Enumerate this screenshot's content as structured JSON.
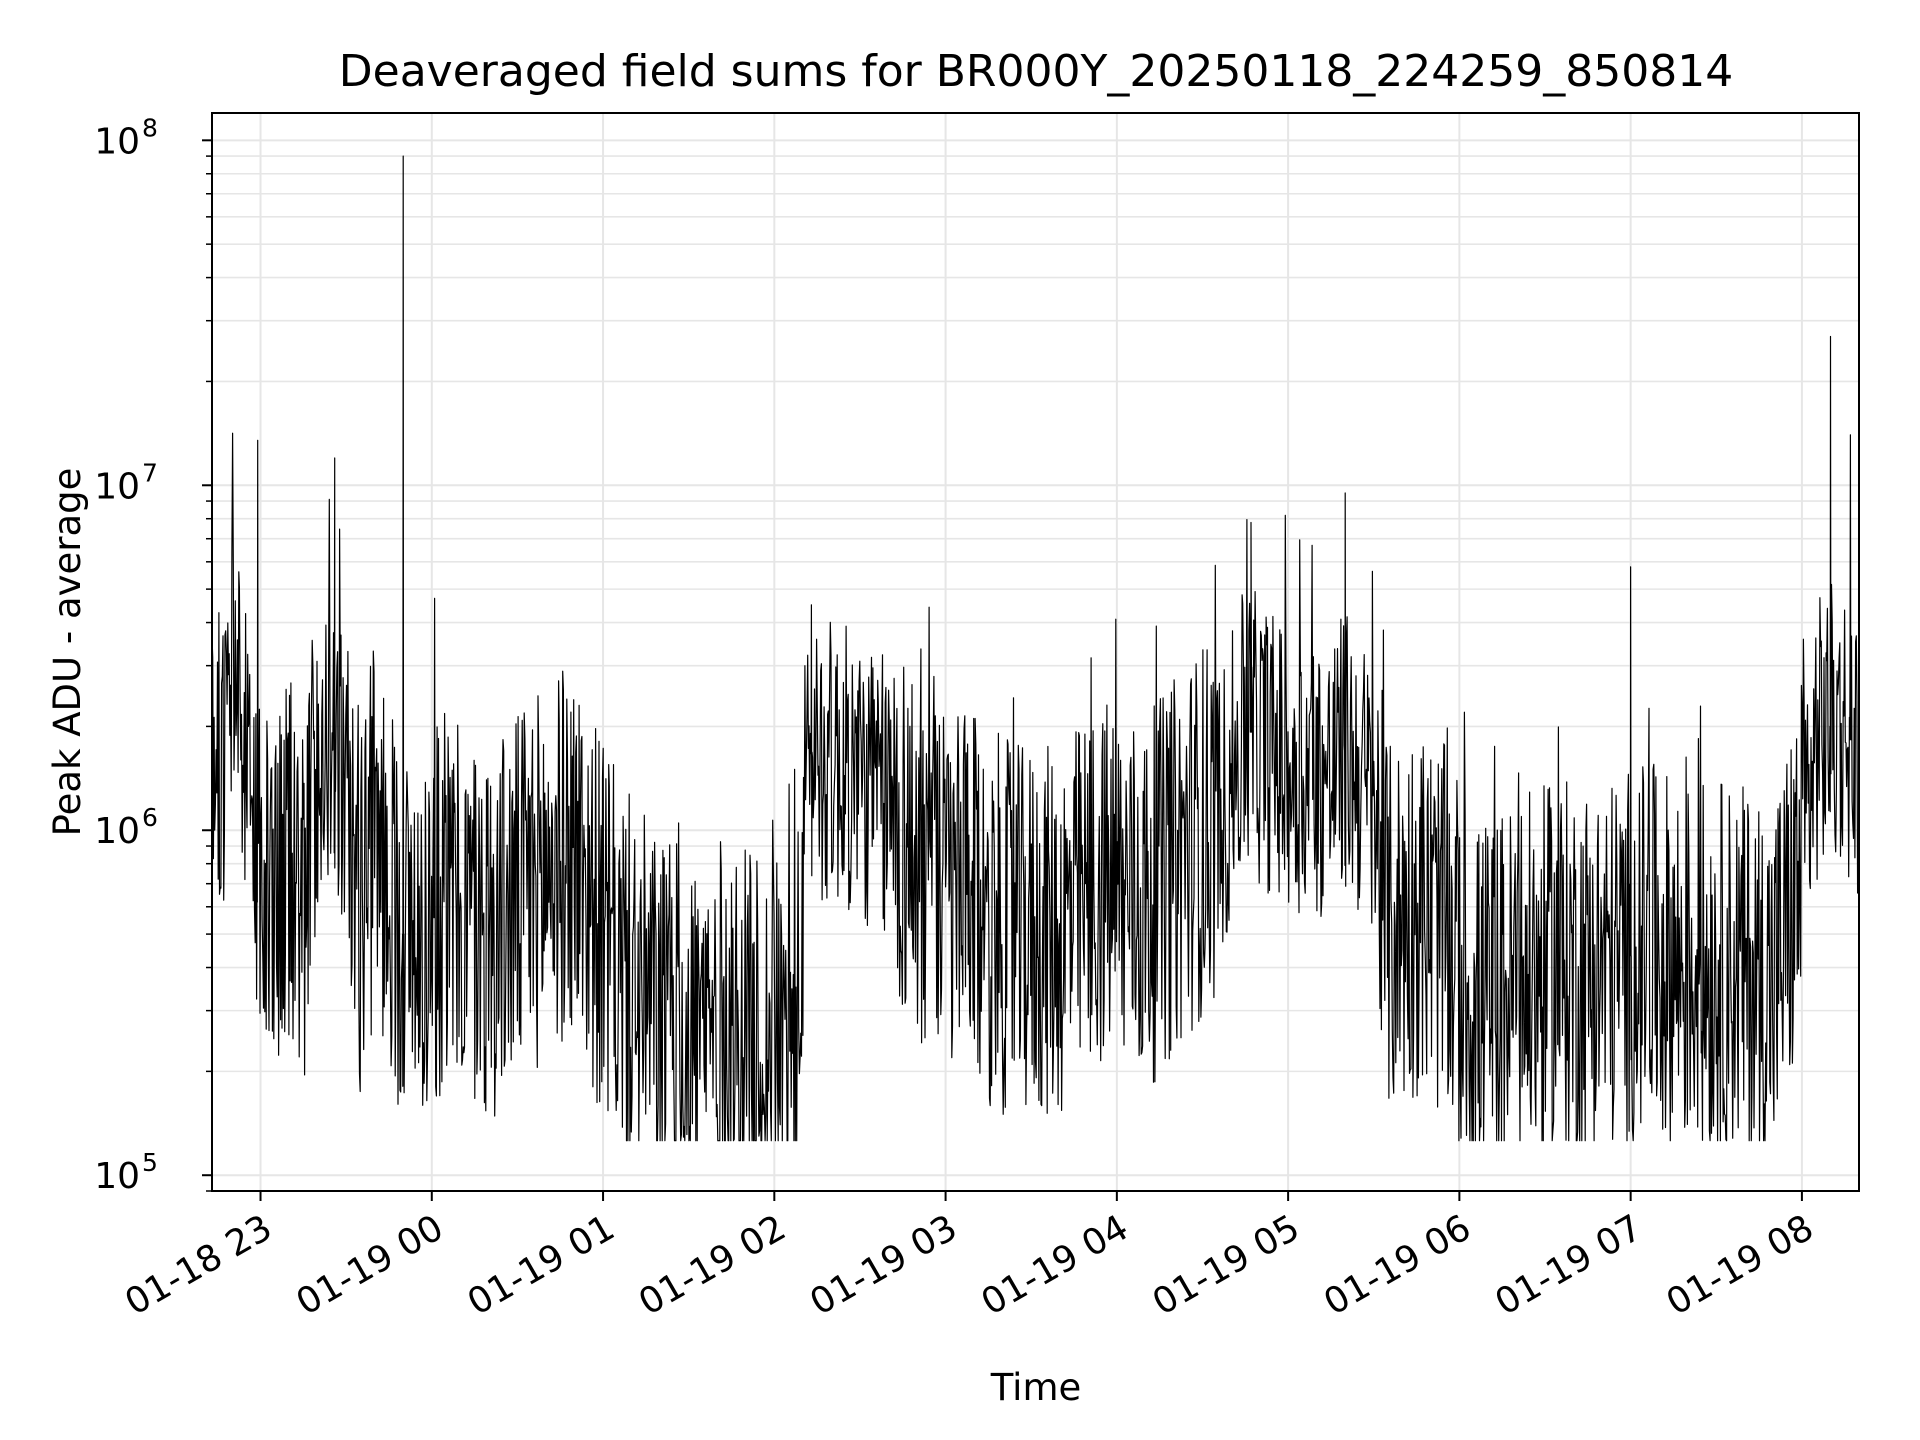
{
  "chart_data": {
    "type": "line",
    "title": "Deaveraged field sums for BR000Y_20250118_224259_850814",
    "xlabel": "Time",
    "ylabel": "Peak ADU - average",
    "yscale": "log",
    "ylim": [
      90000,
      120000000
    ],
    "xlim": [
      "2025-01-18 22:43",
      "2025-01-19 08:20"
    ],
    "grid": true,
    "line_color": "#000000",
    "grid_color": "#e6e6e6",
    "x_ticks": [
      {
        "t": "2025-01-18 23:00",
        "label": "01-18 23"
      },
      {
        "t": "2025-01-19 00:00",
        "label": "01-19 00"
      },
      {
        "t": "2025-01-19 01:00",
        "label": "01-19 01"
      },
      {
        "t": "2025-01-19 02:00",
        "label": "01-19 02"
      },
      {
        "t": "2025-01-19 03:00",
        "label": "01-19 03"
      },
      {
        "t": "2025-01-19 04:00",
        "label": "01-19 04"
      },
      {
        "t": "2025-01-19 05:00",
        "label": "01-19 05"
      },
      {
        "t": "2025-01-19 06:00",
        "label": "01-19 06"
      },
      {
        "t": "2025-01-19 07:00",
        "label": "01-19 07"
      },
      {
        "t": "2025-01-19 08:00",
        "label": "01-19 08"
      }
    ],
    "y_ticks": [
      {
        "v": 100000,
        "base": "10",
        "exp": "5"
      },
      {
        "v": 1000000,
        "base": "10",
        "exp": "6"
      },
      {
        "v": 10000000,
        "base": "10",
        "exp": "7"
      },
      {
        "v": 100000000,
        "base": "10",
        "exp": "8"
      }
    ],
    "series": [
      {
        "x": [
          "2025-01-18 22:43",
          "2025-01-18 22:47",
          "2025-01-18 22:51",
          "2025-01-18 22:55",
          "2025-01-18 22:57",
          "2025-01-18 23:00",
          "2025-01-18 23:05",
          "2025-01-18 23:10",
          "2025-01-18 23:15",
          "2025-01-18 23:20",
          "2025-01-18 23:25",
          "2025-01-18 23:26",
          "2025-01-18 23:30",
          "2025-01-18 23:35",
          "2025-01-18 23:40",
          "2025-01-18 23:45",
          "2025-01-18 23:50",
          "2025-01-18 23:55",
          "2025-01-19 00:05",
          "2025-01-19 00:20",
          "2025-01-19 00:35",
          "2025-01-19 00:50",
          "2025-01-19 01:00",
          "2025-01-19 01:10",
          "2025-01-19 01:20",
          "2025-01-19 01:30",
          "2025-01-19 01:40",
          "2025-01-19 01:50",
          "2025-01-19 02:00",
          "2025-01-19 02:08",
          "2025-01-19 02:12",
          "2025-01-19 02:25",
          "2025-01-19 02:40",
          "2025-01-19 02:55",
          "2025-01-19 03:10",
          "2025-01-19 03:25",
          "2025-01-19 03:40",
          "2025-01-19 03:55",
          "2025-01-19 04:10",
          "2025-01-19 04:25",
          "2025-01-19 04:38",
          "2025-01-19 04:45",
          "2025-01-19 05:00",
          "2025-01-19 05:15",
          "2025-01-19 05:20",
          "2025-01-19 05:30",
          "2025-01-19 05:35",
          "2025-01-19 05:45",
          "2025-01-19 05:55",
          "2025-01-19 06:05",
          "2025-01-19 06:20",
          "2025-01-19 06:35",
          "2025-01-19 06:50",
          "2025-01-19 07:05",
          "2025-01-19 07:20",
          "2025-01-19 07:35",
          "2025-01-19 07:50",
          "2025-01-19 08:00",
          "2025-01-19 08:05",
          "2025-01-19 08:10",
          "2025-01-19 08:15",
          "2025-01-19 08:20"
        ],
        "y": [
          2000000,
          1500000,
          3000000,
          1600000,
          1200000,
          800000,
          500000,
          900000,
          600000,
          1500000,
          2000000,
          1800000,
          1200000,
          600000,
          1000000,
          700000,
          500000,
          500000,
          600000,
          500000,
          700000,
          900000,
          500000,
          350000,
          280000,
          250000,
          270000,
          250000,
          230000,
          250000,
          1700000,
          1500000,
          1200000,
          700000,
          600000,
          500000,
          500000,
          700000,
          600000,
          900000,
          1200000,
          2000000,
          1500000,
          1400000,
          1700000,
          1200000,
          500000,
          600000,
          500000,
          300000,
          350000,
          400000,
          400000,
          450000,
          400000,
          400000,
          350000,
          800000,
          1800000,
          2000000,
          2000000,
          1600000
        ]
      }
    ],
    "peaks": [
      {
        "x": "2025-01-18 22:59",
        "y": 13500000
      },
      {
        "x": "2025-01-18 23:26",
        "y": 12000000
      },
      {
        "x": "2025-01-18 23:50",
        "y": 90000000
      },
      {
        "x": "2025-01-19 00:01",
        "y": 4700000
      },
      {
        "x": "2025-01-19 02:13",
        "y": 4500000
      },
      {
        "x": "2025-01-19 04:47",
        "y": 7800000
      },
      {
        "x": "2025-01-19 05:20",
        "y": 9500000
      },
      {
        "x": "2025-01-19 07:00",
        "y": 5800000
      },
      {
        "x": "2025-01-19 08:10",
        "y": 27000000
      },
      {
        "x": "2025-01-19 08:17",
        "y": 14000000
      }
    ]
  }
}
